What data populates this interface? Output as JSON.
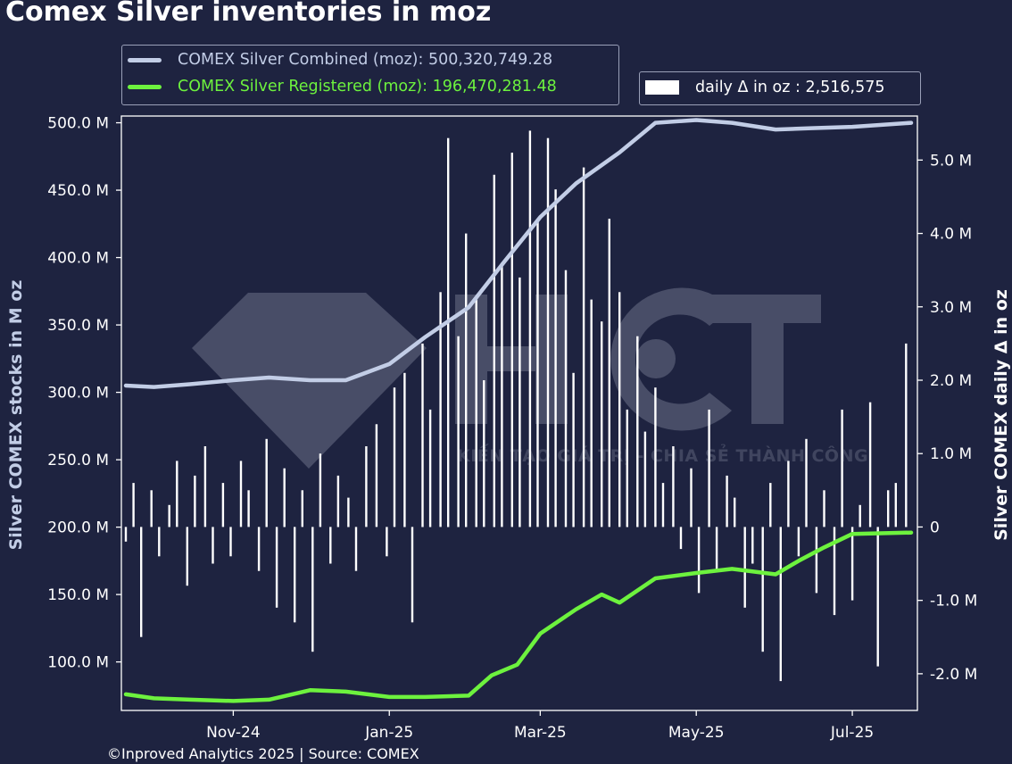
{
  "title": "Comex Silver inventories in moz",
  "credit": "©Inproved Analytics 2025 | Source: COMEX",
  "watermark": {
    "logo_text": "HCT",
    "tagline": "KIẾN TẠO GIÁ TRỊ - CHIA SẺ THÀNH CÔNG"
  },
  "legend": {
    "combined": "COMEX Silver Combined (moz): 500,320,749.28",
    "registered": "COMEX Silver Registered (moz): 196,470,281.48",
    "delta": "daily Δ in oz : 2,516,575"
  },
  "colors": {
    "background": "#1e2340",
    "combined": "#c2cde6",
    "registered": "#6df23e",
    "bars": "#ffffff",
    "axis": "#ffffff"
  },
  "chart_data": {
    "type": "line",
    "title": "Comex Silver inventories in moz",
    "x_tick_labels": [
      "Nov-24",
      "Jan-25",
      "Mar-25",
      "May-25",
      "Jul-25"
    ],
    "x_tick_dates": [
      "2024-11-01",
      "2025-01-01",
      "2025-03-01",
      "2025-05-01",
      "2025-07-01"
    ],
    "xlim": [
      "2024-09-20",
      "2025-07-24"
    ],
    "left_axis": {
      "label": "Silver COMEX stocks in M oz",
      "ticks": [
        100,
        150,
        200,
        250,
        300,
        350,
        400,
        450,
        500
      ],
      "tick_labels": [
        "100.0 M",
        "150.0 M",
        "200.0 M",
        "250.0 M",
        "300.0 M",
        "350.0 M",
        "400.0 M",
        "450.0 M",
        "500.0 M"
      ],
      "ylim": [
        64,
        505
      ]
    },
    "right_axis": {
      "label": "Silver COMEX daily Δ in oz",
      "ticks": [
        -2,
        -1,
        0,
        1,
        2,
        3,
        4,
        5
      ],
      "tick_labels": [
        "-2.0 M",
        "-1.0 M",
        "0",
        "1.0 M",
        "2.0 M",
        "3.0 M",
        "4.0 M",
        "5.0 M"
      ],
      "ylim": [
        -2.5,
        5.6
      ]
    },
    "series": [
      {
        "name": "COMEX Silver Combined (moz)",
        "axis": "left",
        "color": "#c2cde6",
        "points": [
          [
            "2024-09-20",
            305
          ],
          [
            "2024-10-01",
            304
          ],
          [
            "2024-10-15",
            306
          ],
          [
            "2024-11-01",
            309
          ],
          [
            "2024-11-15",
            311
          ],
          [
            "2024-12-01",
            309
          ],
          [
            "2024-12-15",
            309
          ],
          [
            "2025-01-01",
            321
          ],
          [
            "2025-01-15",
            341
          ],
          [
            "2025-02-01",
            363
          ],
          [
            "2025-02-15",
            397
          ],
          [
            "2025-03-01",
            430
          ],
          [
            "2025-03-15",
            455
          ],
          [
            "2025-04-01",
            478
          ],
          [
            "2025-04-15",
            500
          ],
          [
            "2025-05-01",
            502
          ],
          [
            "2025-05-15",
            500
          ],
          [
            "2025-06-01",
            495
          ],
          [
            "2025-06-15",
            496
          ],
          [
            "2025-07-01",
            497
          ],
          [
            "2025-07-24",
            500
          ]
        ]
      },
      {
        "name": "COMEX Silver Registered (moz)",
        "axis": "left",
        "color": "#6df23e",
        "points": [
          [
            "2024-09-20",
            76
          ],
          [
            "2024-10-01",
            73
          ],
          [
            "2024-10-15",
            72
          ],
          [
            "2024-11-01",
            71
          ],
          [
            "2024-11-15",
            72
          ],
          [
            "2024-12-01",
            79
          ],
          [
            "2024-12-15",
            78
          ],
          [
            "2025-01-01",
            74
          ],
          [
            "2025-01-15",
            74
          ],
          [
            "2025-02-01",
            75
          ],
          [
            "2025-02-10",
            90
          ],
          [
            "2025-02-20",
            98
          ],
          [
            "2025-03-01",
            121
          ],
          [
            "2025-03-15",
            139
          ],
          [
            "2025-03-25",
            150
          ],
          [
            "2025-04-01",
            144
          ],
          [
            "2025-04-15",
            162
          ],
          [
            "2025-05-01",
            166
          ],
          [
            "2025-05-15",
            169
          ],
          [
            "2025-06-01",
            165
          ],
          [
            "2025-06-10",
            175
          ],
          [
            "2025-06-20",
            185
          ],
          [
            "2025-07-01",
            195
          ],
          [
            "2025-07-24",
            196
          ]
        ]
      },
      {
        "name": "daily Δ in oz",
        "axis": "right",
        "type": "bar",
        "color": "#ffffff",
        "unit": "M oz",
        "points": [
          [
            "2024-09-20",
            -0.2
          ],
          [
            "2024-09-23",
            0.6
          ],
          [
            "2024-09-26",
            -1.5
          ],
          [
            "2024-09-30",
            0.5
          ],
          [
            "2024-10-03",
            -0.4
          ],
          [
            "2024-10-07",
            0.3
          ],
          [
            "2024-10-10",
            0.9
          ],
          [
            "2024-10-14",
            -0.8
          ],
          [
            "2024-10-17",
            0.7
          ],
          [
            "2024-10-21",
            1.1
          ],
          [
            "2024-10-24",
            -0.5
          ],
          [
            "2024-10-28",
            0.6
          ],
          [
            "2024-10-31",
            -0.4
          ],
          [
            "2024-11-04",
            0.9
          ],
          [
            "2024-11-07",
            0.5
          ],
          [
            "2024-11-11",
            -0.6
          ],
          [
            "2024-11-14",
            1.2
          ],
          [
            "2024-11-18",
            -1.1
          ],
          [
            "2024-11-21",
            0.8
          ],
          [
            "2024-11-25",
            -1.3
          ],
          [
            "2024-11-28",
            0.5
          ],
          [
            "2024-12-02",
            -1.7
          ],
          [
            "2024-12-05",
            1.0
          ],
          [
            "2024-12-09",
            -0.5
          ],
          [
            "2024-12-12",
            0.7
          ],
          [
            "2024-12-16",
            0.4
          ],
          [
            "2024-12-19",
            -0.6
          ],
          [
            "2024-12-23",
            1.1
          ],
          [
            "2024-12-27",
            1.4
          ],
          [
            "2024-12-31",
            -0.4
          ],
          [
            "2025-01-03",
            1.9
          ],
          [
            "2025-01-07",
            2.1
          ],
          [
            "2025-01-10",
            -1.3
          ],
          [
            "2025-01-14",
            2.5
          ],
          [
            "2025-01-17",
            1.6
          ],
          [
            "2025-01-21",
            3.2
          ],
          [
            "2025-01-24",
            5.3
          ],
          [
            "2025-01-28",
            2.6
          ],
          [
            "2025-01-31",
            4.0
          ],
          [
            "2025-02-04",
            3.1
          ],
          [
            "2025-02-07",
            2.0
          ],
          [
            "2025-02-11",
            4.8
          ],
          [
            "2025-02-14",
            3.6
          ],
          [
            "2025-02-18",
            5.1
          ],
          [
            "2025-02-21",
            3.4
          ],
          [
            "2025-02-25",
            5.4
          ],
          [
            "2025-02-28",
            4.2
          ],
          [
            "2025-03-04",
            5.3
          ],
          [
            "2025-03-07",
            4.6
          ],
          [
            "2025-03-11",
            3.5
          ],
          [
            "2025-03-14",
            2.1
          ],
          [
            "2025-03-18",
            4.9
          ],
          [
            "2025-03-21",
            3.1
          ],
          [
            "2025-03-25",
            2.8
          ],
          [
            "2025-03-28",
            4.2
          ],
          [
            "2025-04-01",
            3.2
          ],
          [
            "2025-04-04",
            1.6
          ],
          [
            "2025-04-08",
            2.6
          ],
          [
            "2025-04-11",
            1.3
          ],
          [
            "2025-04-15",
            1.9
          ],
          [
            "2025-04-18",
            0.6
          ],
          [
            "2025-04-22",
            1.1
          ],
          [
            "2025-04-25",
            -0.3
          ],
          [
            "2025-04-29",
            0.8
          ],
          [
            "2025-05-02",
            -0.9
          ],
          [
            "2025-05-06",
            1.6
          ],
          [
            "2025-05-09",
            -0.6
          ],
          [
            "2025-05-13",
            0.7
          ],
          [
            "2025-05-16",
            0.4
          ],
          [
            "2025-05-20",
            -1.1
          ],
          [
            "2025-05-23",
            -0.5
          ],
          [
            "2025-05-27",
            -1.7
          ],
          [
            "2025-05-30",
            0.6
          ],
          [
            "2025-06-03",
            -2.1
          ],
          [
            "2025-06-06",
            0.9
          ],
          [
            "2025-06-10",
            -0.4
          ],
          [
            "2025-06-13",
            1.2
          ],
          [
            "2025-06-17",
            -0.9
          ],
          [
            "2025-06-20",
            0.5
          ],
          [
            "2025-06-24",
            -1.2
          ],
          [
            "2025-06-27",
            1.6
          ],
          [
            "2025-07-01",
            -1.0
          ],
          [
            "2025-07-04",
            0.3
          ],
          [
            "2025-07-08",
            1.7
          ],
          [
            "2025-07-11",
            -1.9
          ],
          [
            "2025-07-15",
            0.5
          ],
          [
            "2025-07-18",
            0.6
          ],
          [
            "2025-07-22",
            2.5
          ]
        ]
      }
    ],
    "grid": false
  }
}
